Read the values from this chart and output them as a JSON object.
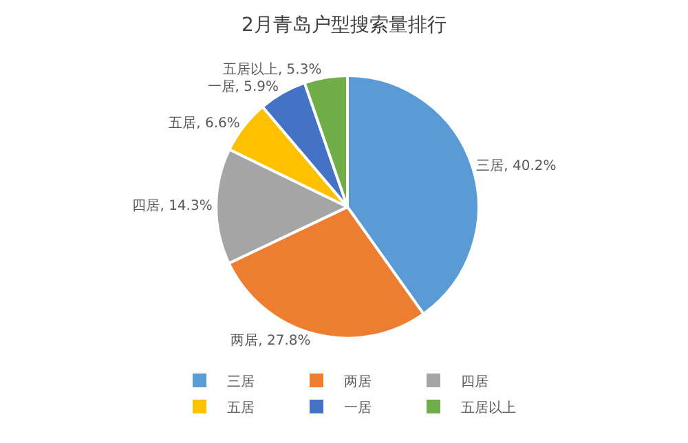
{
  "chart_data": {
    "type": "pie",
    "title": "2月青岛户型搜索量排行",
    "categories": [
      "三居",
      "两居",
      "四居",
      "五居",
      "一居",
      "五居以上"
    ],
    "values": [
      40.2,
      27.8,
      14.3,
      6.6,
      5.9,
      5.3
    ],
    "value_labels": [
      "三居, 40.2%",
      "两居, 27.8%",
      "四居, 14.3%",
      "五居, 6.6%",
      "一居, 5.9%",
      "五居以上, 5.3%"
    ],
    "colors": [
      "#5b9bd5",
      "#ed7d31",
      "#a5a5a5",
      "#ffc000",
      "#4472c4",
      "#70ad47"
    ],
    "legend": "bottom"
  }
}
